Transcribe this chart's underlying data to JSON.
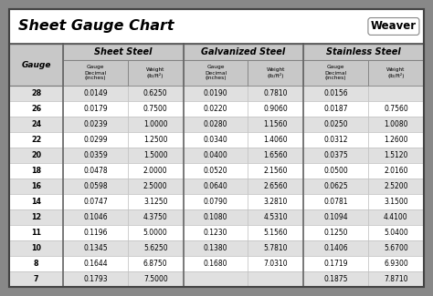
{
  "title": "Sheet Gauge Chart",
  "bg_outer": "#888888",
  "bg_white": "#ffffff",
  "bg_header": "#d0d0d0",
  "bg_row_alt": "#e0e0e0",
  "gauges": [
    28,
    26,
    24,
    22,
    20,
    18,
    16,
    14,
    12,
    11,
    10,
    8,
    7
  ],
  "sheet_steel": [
    [
      "0.0149",
      "0.6250"
    ],
    [
      "0.0179",
      "0.7500"
    ],
    [
      "0.0239",
      "1.0000"
    ],
    [
      "0.0299",
      "1.2500"
    ],
    [
      "0.0359",
      "1.5000"
    ],
    [
      "0.0478",
      "2.0000"
    ],
    [
      "0.0598",
      "2.5000"
    ],
    [
      "0.0747",
      "3.1250"
    ],
    [
      "0.1046",
      "4.3750"
    ],
    [
      "0.1196",
      "5.0000"
    ],
    [
      "0.1345",
      "5.6250"
    ],
    [
      "0.1644",
      "6.8750"
    ],
    [
      "0.1793",
      "7.5000"
    ]
  ],
  "galvanized_steel": [
    [
      "0.0190",
      "0.7810"
    ],
    [
      "0.0220",
      "0.9060"
    ],
    [
      "0.0280",
      "1.1560"
    ],
    [
      "0.0340",
      "1.4060"
    ],
    [
      "0.0400",
      "1.6560"
    ],
    [
      "0.0520",
      "2.1560"
    ],
    [
      "0.0640",
      "2.6560"
    ],
    [
      "0.0790",
      "3.2810"
    ],
    [
      "0.1080",
      "4.5310"
    ],
    [
      "0.1230",
      "5.1560"
    ],
    [
      "0.1380",
      "5.7810"
    ],
    [
      "0.1680",
      "7.0310"
    ],
    [
      "",
      ""
    ]
  ],
  "stainless_steel": [
    [
      "0.0156",
      ""
    ],
    [
      "0.0187",
      "0.7560"
    ],
    [
      "0.0250",
      "1.0080"
    ],
    [
      "0.0312",
      "1.2600"
    ],
    [
      "0.0375",
      "1.5120"
    ],
    [
      "0.0500",
      "2.0160"
    ],
    [
      "0.0625",
      "2.5200"
    ],
    [
      "0.0781",
      "3.1500"
    ],
    [
      "0.1094",
      "4.4100"
    ],
    [
      "0.1250",
      "5.0400"
    ],
    [
      "0.1406",
      "5.6700"
    ],
    [
      "0.1719",
      "6.9300"
    ],
    [
      "0.1875",
      "7.8710"
    ]
  ],
  "col_group_headers": [
    "Sheet Steel",
    "Galvanized Steel",
    "Stainless Steel"
  ],
  "sub_col_labels": [
    "Gauge\nDecimal\n(inches)",
    "Weight\n(lb/ft²)",
    "Gauge\nDecimal\n(inches)",
    "Weight\n(lb/ft²)",
    "Gauge\nDecimal\n(inches)",
    "Weight\n(lb/ft²)"
  ]
}
